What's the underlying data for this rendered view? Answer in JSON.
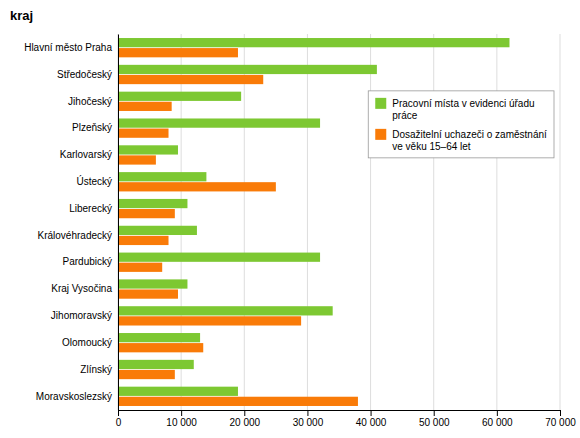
{
  "chart_data": {
    "type": "bar",
    "orientation": "horizontal",
    "title": "kraj",
    "categories": [
      "Hlavní město Praha",
      "Středočeský",
      "Jihočeský",
      "Plzeňský",
      "Karlovarský",
      "Ústecký",
      "Liberecký",
      "Královéhradecký",
      "Pardubický",
      "Kraj Vysočina",
      "Jihomoravský",
      "Olomoucký",
      "Zlínský",
      "Moravskoslezský"
    ],
    "series": [
      {
        "name": "Pracovní místa v evidenci úřadu\npráce",
        "color": "#7dc832",
        "values": [
          62000,
          41000,
          19500,
          32000,
          9500,
          14000,
          11000,
          12500,
          32000,
          11000,
          34000,
          13000,
          12000,
          19000
        ]
      },
      {
        "name": "Dosažitelní uchazeči o zaměstnání\nve věku 15–64 let",
        "color": "#f97b08",
        "values": [
          19000,
          23000,
          8500,
          8000,
          6000,
          25000,
          9000,
          8000,
          7000,
          9500,
          29000,
          13500,
          9000,
          38000
        ]
      }
    ],
    "xlim": [
      0,
      70000
    ],
    "xticks": [
      0,
      {
        "value": 10000,
        "label": "10 000"
      },
      {
        "value": 20000,
        "label": "20 000"
      },
      {
        "value": 30000,
        "label": "30 000"
      },
      {
        "value": 40000,
        "label": "40 000"
      },
      {
        "value": 50000,
        "label": "50 000"
      },
      {
        "value": 60000,
        "label": "60 000"
      },
      {
        "value": 70000,
        "label": "70 000"
      }
    ],
    "grid": true,
    "legend": "upper right"
  }
}
